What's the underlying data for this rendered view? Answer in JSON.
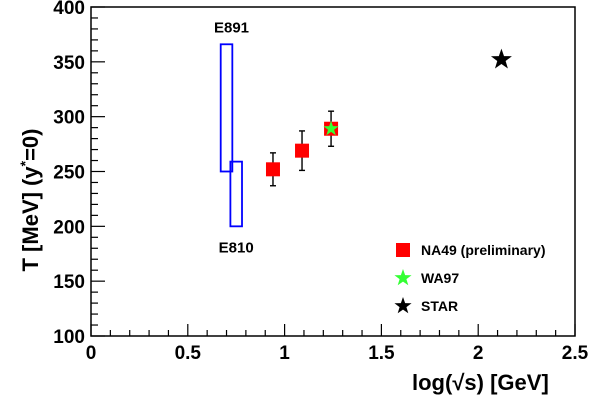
{
  "chart_data": {
    "type": "scatter",
    "title": "",
    "xlabel_pre": "log(",
    "xlabel_sqrt": "√",
    "xlabel_var": "s",
    "xlabel_post": ") [GeV]",
    "ylabel_main": "T [MeV]  (y",
    "ylabel_sup": "*",
    "ylabel_end": "=0)",
    "xlim": [
      0,
      2.5
    ],
    "ylim": [
      100,
      400
    ],
    "x_ticks": [
      "0",
      "0.5",
      "1",
      "1.5",
      "2",
      "2.5"
    ],
    "x_tick_values": [
      0,
      0.5,
      1,
      1.5,
      2,
      2.5
    ],
    "y_ticks": [
      "100",
      "150",
      "200",
      "250",
      "300",
      "350",
      "400"
    ],
    "y_tick_values": [
      100,
      150,
      200,
      250,
      300,
      350,
      400
    ],
    "grid": false,
    "legend_position": "bottom-right",
    "series": [
      {
        "name": "NA49 (preliminary)",
        "marker": "square",
        "color": "#ff0000",
        "points": [
          {
            "x": 0.94,
            "y": 252,
            "err": 15
          },
          {
            "x": 1.09,
            "y": 269,
            "err": 18
          },
          {
            "x": 1.24,
            "y": 289,
            "err": 16
          }
        ]
      },
      {
        "name": "WA97",
        "marker": "star",
        "color": "#33ff33",
        "points": [
          {
            "x": 1.24,
            "y": 289
          }
        ]
      },
      {
        "name": "STAR",
        "marker": "star",
        "color": "#000000",
        "points": [
          {
            "x": 2.12,
            "y": 352
          }
        ]
      }
    ],
    "boxes": [
      {
        "label": "E891",
        "x0": 0.67,
        "x1": 0.73,
        "y0": 250,
        "y1": 366,
        "color": "#0000ff"
      },
      {
        "label": "E810",
        "x0": 0.72,
        "x1": 0.78,
        "y0": 200,
        "y1": 259,
        "color": "#0000ff"
      }
    ]
  }
}
